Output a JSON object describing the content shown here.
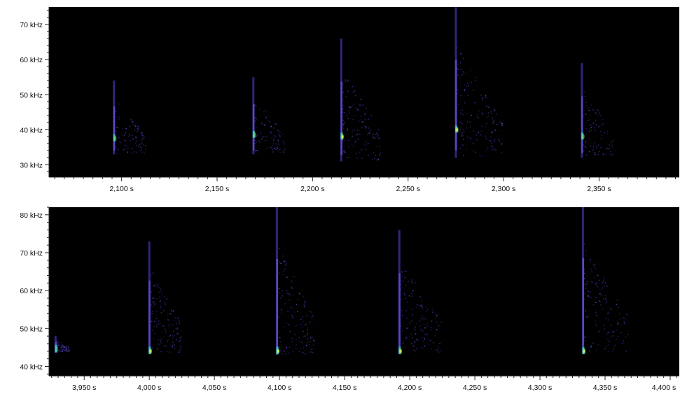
{
  "chart_data": [
    {
      "type": "heatmap",
      "title": "",
      "xlabel": "",
      "ylabel": "",
      "xlim": [
        2062,
        2392
      ],
      "ylim": [
        26.5,
        75
      ],
      "x_ticks": [
        {
          "value": 2100,
          "label": "2,100 s"
        },
        {
          "value": 2150,
          "label": "2,150 s"
        },
        {
          "value": 2200,
          "label": "2,200 s"
        },
        {
          "value": 2250,
          "label": "2,250 s"
        },
        {
          "value": 2300,
          "label": "2,300 s"
        },
        {
          "value": 2350,
          "label": "2,350 s"
        }
      ],
      "y_ticks": [
        {
          "value": 30,
          "label": "30 kHz"
        },
        {
          "value": 40,
          "label": "40 kHz"
        },
        {
          "value": 50,
          "label": "50 kHz"
        },
        {
          "value": 60,
          "label": "60 kHz"
        },
        {
          "value": 70,
          "label": "70 kHz"
        }
      ],
      "calls": [
        {
          "time": 2096,
          "f_top": 54,
          "f_bottom": 33,
          "f_peak": 37.5,
          "tail": 16,
          "intensity": 0.55
        },
        {
          "time": 2169,
          "f_top": 55,
          "f_bottom": 33,
          "f_peak": 38.5,
          "tail": 16,
          "intensity": 0.6
        },
        {
          "time": 2215,
          "f_top": 66,
          "f_bottom": 31,
          "f_peak": 38,
          "tail": 20,
          "intensity": 0.85
        },
        {
          "time": 2275,
          "f_top": 75,
          "f_bottom": 32,
          "f_peak": 40,
          "tail": 24,
          "intensity": 0.9
        },
        {
          "time": 2341,
          "f_top": 59,
          "f_bottom": 32,
          "f_peak": 38,
          "tail": 16,
          "intensity": 0.6
        }
      ]
    },
    {
      "type": "heatmap",
      "title": "",
      "xlabel": "",
      "ylabel": "",
      "xlim": [
        3923,
        4407
      ],
      "ylim": [
        37.5,
        82
      ],
      "x_ticks": [
        {
          "value": 3950,
          "label": "3,950 s"
        },
        {
          "value": 4000,
          "label": "4,000 s"
        },
        {
          "value": 4050,
          "label": "4,050 s"
        },
        {
          "value": 4100,
          "label": "4,100 s"
        },
        {
          "value": 4150,
          "label": "4,150 s"
        },
        {
          "value": 4200,
          "label": "4,200 s"
        },
        {
          "value": 4250,
          "label": "4,250 s"
        },
        {
          "value": 4300,
          "label": "4,300 s"
        },
        {
          "value": 4350,
          "label": "4,350 s"
        },
        {
          "value": 4400,
          "label": "4,400 s"
        }
      ],
      "y_ticks": [
        {
          "value": 40,
          "label": "40 kHz"
        },
        {
          "value": 50,
          "label": "50 kHz"
        },
        {
          "value": 60,
          "label": "60 kHz"
        },
        {
          "value": 70,
          "label": "70 kHz"
        },
        {
          "value": 80,
          "label": "80 kHz"
        }
      ],
      "calls": [
        {
          "time": 3928,
          "f_top": 48,
          "f_bottom": 43.5,
          "f_peak": 44.5,
          "tail": 10,
          "intensity": 0.4
        },
        {
          "time": 4000,
          "f_top": 73,
          "f_bottom": 43.5,
          "f_peak": 44,
          "tail": 24,
          "intensity": 0.85
        },
        {
          "time": 4098,
          "f_top": 82,
          "f_bottom": 43,
          "f_peak": 44,
          "tail": 28,
          "intensity": 0.9
        },
        {
          "time": 4192,
          "f_top": 76,
          "f_bottom": 43.5,
          "f_peak": 44,
          "tail": 32,
          "intensity": 0.85
        },
        {
          "time": 4333,
          "f_top": 82,
          "f_bottom": 43.5,
          "f_peak": 44,
          "tail": 34,
          "intensity": 0.9
        }
      ]
    }
  ],
  "colors": {
    "background": "#ffffff",
    "plot_background": "#000000",
    "axis": "#222222",
    "text": "#111111",
    "colormap": [
      "#1a0a4a",
      "#3b2a8f",
      "#5a4fd0",
      "#6a8ce8",
      "#2ec4c4",
      "#7ee07a",
      "#e8f05a"
    ]
  }
}
